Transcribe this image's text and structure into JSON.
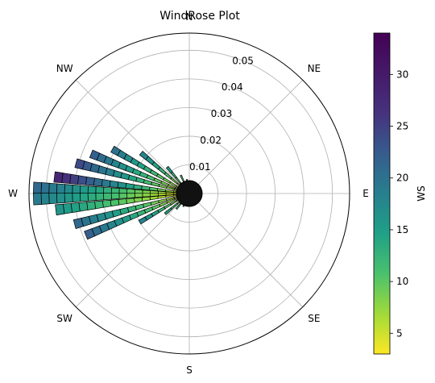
{
  "chart_data": {
    "type": "windrose",
    "title": "WindRose Plot",
    "directions": [
      "N",
      "NE",
      "E",
      "SE",
      "S",
      "SW",
      "W",
      "NW"
    ],
    "radial_ticks": [
      0.01,
      0.02,
      0.03,
      0.04,
      0.05
    ],
    "radial_tick_labels": [
      "0.01",
      "0.02",
      "0.03",
      "0.04",
      "0.05"
    ],
    "rmax": 0.056,
    "colorbar": {
      "label": "WS",
      "min": 3,
      "max": 34,
      "ticks": [
        5,
        10,
        15,
        20,
        25,
        30
      ],
      "tick_labels": [
        "5",
        "10",
        "15",
        "20",
        "25",
        "30"
      ],
      "colormap": "viridis_r"
    },
    "wedges": [
      {
        "theta_deg": 272,
        "r": 0.0545,
        "ws": 21
      },
      {
        "theta_deg": 268,
        "r": 0.0545,
        "ws": 19
      },
      {
        "theta_deg": 277,
        "r": 0.0475,
        "ws": 28
      },
      {
        "theta_deg": 263,
        "r": 0.047,
        "ws": 16
      },
      {
        "theta_deg": 285,
        "r": 0.041,
        "ws": 24
      },
      {
        "theta_deg": 255,
        "r": 0.0415,
        "ws": 21
      },
      {
        "theta_deg": 292,
        "r": 0.037,
        "ws": 22
      },
      {
        "theta_deg": 248,
        "r": 0.039,
        "ws": 22
      },
      {
        "theta_deg": 300,
        "r": 0.031,
        "ws": 20
      },
      {
        "theta_deg": 310,
        "r": 0.022,
        "ws": 18
      },
      {
        "theta_deg": 240,
        "r": 0.02,
        "ws": 18
      },
      {
        "theta_deg": 320,
        "r": 0.012,
        "ws": 15
      },
      {
        "theta_deg": 230,
        "r": 0.011,
        "ws": 14
      },
      {
        "theta_deg": 335,
        "r": 0.007,
        "ws": 12
      },
      {
        "theta_deg": 220,
        "r": 0.007,
        "ws": 12
      },
      {
        "theta_deg": 350,
        "r": 0.005,
        "ws": 11
      },
      {
        "theta_deg": 205,
        "r": 0.005,
        "ws": 10
      },
      {
        "theta_deg": 10,
        "r": 0.004,
        "ws": 10
      },
      {
        "theta_deg": 190,
        "r": 0.004,
        "ws": 9
      },
      {
        "theta_deg": 30,
        "r": 0.003,
        "ws": 9
      },
      {
        "theta_deg": 60,
        "r": 0.003,
        "ws": 8
      },
      {
        "theta_deg": 100,
        "r": 0.003,
        "ws": 8
      },
      {
        "theta_deg": 130,
        "r": 0.003,
        "ws": 8
      },
      {
        "theta_deg": 160,
        "r": 0.003,
        "ws": 8
      }
    ]
  }
}
